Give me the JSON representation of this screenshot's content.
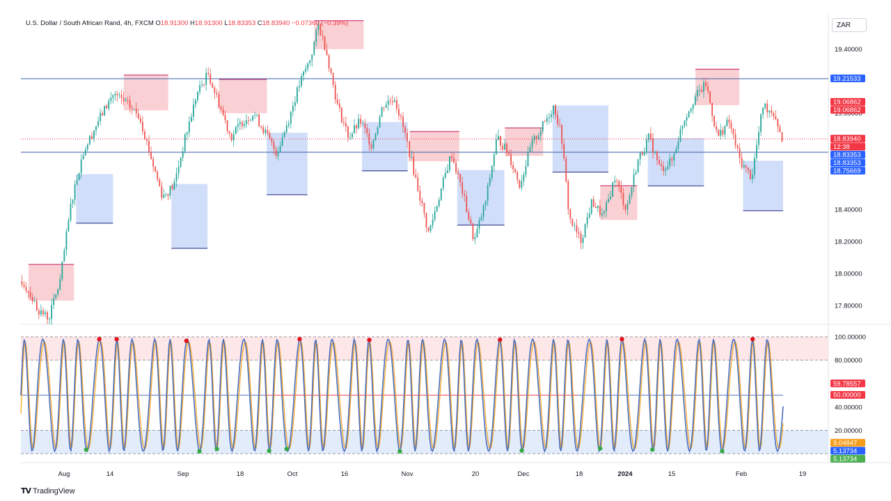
{
  "header": {
    "symbol_desc": "U.S. Dollar / South African Rand, 4h, FXCM",
    "open_label": "O",
    "open": "18.91300",
    "high_label": "H",
    "high": "18.91300",
    "low_label": "L",
    "low": "18.83353",
    "close_label": "C",
    "close": "18.83940",
    "change": "−0.07360 (−0.39%)"
  },
  "currency": "ZAR",
  "brand": "TradingView",
  "colors": {
    "up": "#26a69a",
    "down": "#ef5350",
    "supply": "#f8c9cd",
    "demand": "#c9d8f8",
    "level_line": "#3d5fa8",
    "osc_k": "#4a6dbd",
    "osc_d": "#f5a623",
    "ob_dot": "#e0151e",
    "os_dot": "#36a845"
  },
  "chart_data": [
    {
      "type": "candlestick",
      "title": "",
      "ylim": [
        17.7,
        19.62
      ],
      "y_ticks": [
        "19.40000",
        "19.00000",
        "18.40000",
        "18.20000",
        "18.00000",
        "17.80000"
      ],
      "x_ticks": [
        "Aug",
        "14",
        "Sep",
        "18",
        "Oct",
        "16",
        "Nov",
        "20",
        "Dec",
        "18",
        "2024",
        "15",
        "Feb",
        "19"
      ],
      "horizontal_levels": [
        19.21533,
        18.75669
      ],
      "price_tags": [
        {
          "label": "19.21533",
          "value": 19.21533,
          "color": "#2962ff"
        },
        {
          "label": "19.06862",
          "value": 19.06862,
          "color": "#f23645"
        },
        {
          "label": "19.06862",
          "value": 19.06862,
          "color": "#f23645"
        },
        {
          "label": "18.83940",
          "value": 18.8394,
          "color": "#f23645"
        },
        {
          "label": "12:38",
          "value": 18.8394,
          "color": "#f23645"
        },
        {
          "label": "18.83353",
          "value": 18.83353,
          "color": "#2962ff"
        },
        {
          "label": "18.83353",
          "value": 18.83353,
          "color": "#2962ff"
        },
        {
          "label": "18.75669",
          "value": 18.75669,
          "color": "#2962ff"
        }
      ],
      "path_points": [
        {
          "t": 0.0,
          "p": 17.95
        },
        {
          "t": 0.01,
          "p": 17.88
        },
        {
          "t": 0.02,
          "p": 17.78
        },
        {
          "t": 0.035,
          "p": 17.72
        },
        {
          "t": 0.05,
          "p": 17.95
        },
        {
          "t": 0.065,
          "p": 18.45
        },
        {
          "t": 0.08,
          "p": 18.75
        },
        {
          "t": 0.1,
          "p": 18.95
        },
        {
          "t": 0.12,
          "p": 19.12
        },
        {
          "t": 0.14,
          "p": 19.05
        },
        {
          "t": 0.155,
          "p": 18.98
        },
        {
          "t": 0.17,
          "p": 18.72
        },
        {
          "t": 0.185,
          "p": 18.48
        },
        {
          "t": 0.2,
          "p": 18.55
        },
        {
          "t": 0.215,
          "p": 18.85
        },
        {
          "t": 0.23,
          "p": 19.12
        },
        {
          "t": 0.245,
          "p": 19.25
        },
        {
          "t": 0.26,
          "p": 19.05
        },
        {
          "t": 0.275,
          "p": 18.85
        },
        {
          "t": 0.29,
          "p": 18.95
        },
        {
          "t": 0.305,
          "p": 19.0
        },
        {
          "t": 0.32,
          "p": 18.88
        },
        {
          "t": 0.335,
          "p": 18.75
        },
        {
          "t": 0.35,
          "p": 18.95
        },
        {
          "t": 0.365,
          "p": 19.18
        },
        {
          "t": 0.38,
          "p": 19.35
        },
        {
          "t": 0.39,
          "p": 19.55
        },
        {
          "t": 0.4,
          "p": 19.4
        },
        {
          "t": 0.415,
          "p": 19.05
        },
        {
          "t": 0.43,
          "p": 18.85
        },
        {
          "t": 0.445,
          "p": 18.95
        },
        {
          "t": 0.46,
          "p": 18.8
        },
        {
          "t": 0.475,
          "p": 19.05
        },
        {
          "t": 0.49,
          "p": 19.1
        },
        {
          "t": 0.505,
          "p": 18.85
        },
        {
          "t": 0.52,
          "p": 18.55
        },
        {
          "t": 0.535,
          "p": 18.25
        },
        {
          "t": 0.55,
          "p": 18.5
        },
        {
          "t": 0.565,
          "p": 18.75
        },
        {
          "t": 0.58,
          "p": 18.5
        },
        {
          "t": 0.595,
          "p": 18.2
        },
        {
          "t": 0.61,
          "p": 18.45
        },
        {
          "t": 0.625,
          "p": 18.85
        },
        {
          "t": 0.64,
          "p": 18.75
        },
        {
          "t": 0.655,
          "p": 18.55
        },
        {
          "t": 0.67,
          "p": 18.8
        },
        {
          "t": 0.685,
          "p": 18.92
        },
        {
          "t": 0.7,
          "p": 19.05
        },
        {
          "t": 0.71,
          "p": 18.85
        },
        {
          "t": 0.72,
          "p": 18.35
        },
        {
          "t": 0.735,
          "p": 18.2
        },
        {
          "t": 0.75,
          "p": 18.45
        },
        {
          "t": 0.765,
          "p": 18.35
        },
        {
          "t": 0.78,
          "p": 18.6
        },
        {
          "t": 0.795,
          "p": 18.4
        },
        {
          "t": 0.81,
          "p": 18.7
        },
        {
          "t": 0.825,
          "p": 18.85
        },
        {
          "t": 0.84,
          "p": 18.65
        },
        {
          "t": 0.855,
          "p": 18.7
        },
        {
          "t": 0.87,
          "p": 18.95
        },
        {
          "t": 0.885,
          "p": 19.1
        },
        {
          "t": 0.9,
          "p": 19.18
        },
        {
          "t": 0.915,
          "p": 18.85
        },
        {
          "t": 0.93,
          "p": 18.95
        },
        {
          "t": 0.945,
          "p": 18.7
        },
        {
          "t": 0.96,
          "p": 18.6
        },
        {
          "t": 0.975,
          "p": 19.05
        },
        {
          "t": 0.99,
          "p": 19.0
        },
        {
          "t": 1.0,
          "p": 18.84
        }
      ]
    },
    {
      "type": "line",
      "title": "",
      "ylim": [
        0,
        100
      ],
      "y_ticks": [
        "100.00000",
        "80.00000",
        "40.00000",
        "20.00000"
      ],
      "levels": [
        100,
        80,
        50,
        20,
        0
      ],
      "series_values": [
        {
          "label": "59.78557",
          "value": 59.78557,
          "color": "#f23645"
        },
        {
          "label": "50.00000",
          "value": 50.0,
          "color": "#f23645"
        },
        {
          "label": "9.04847",
          "value": 9.04847,
          "color": "#f59d19"
        },
        {
          "label": "5.13734",
          "value": 5.13734,
          "color": "#2962ff"
        },
        {
          "label": "5.13734",
          "value": 5.13734,
          "color": "#4caf50"
        }
      ],
      "oscillation_cycles": 42
    }
  ]
}
